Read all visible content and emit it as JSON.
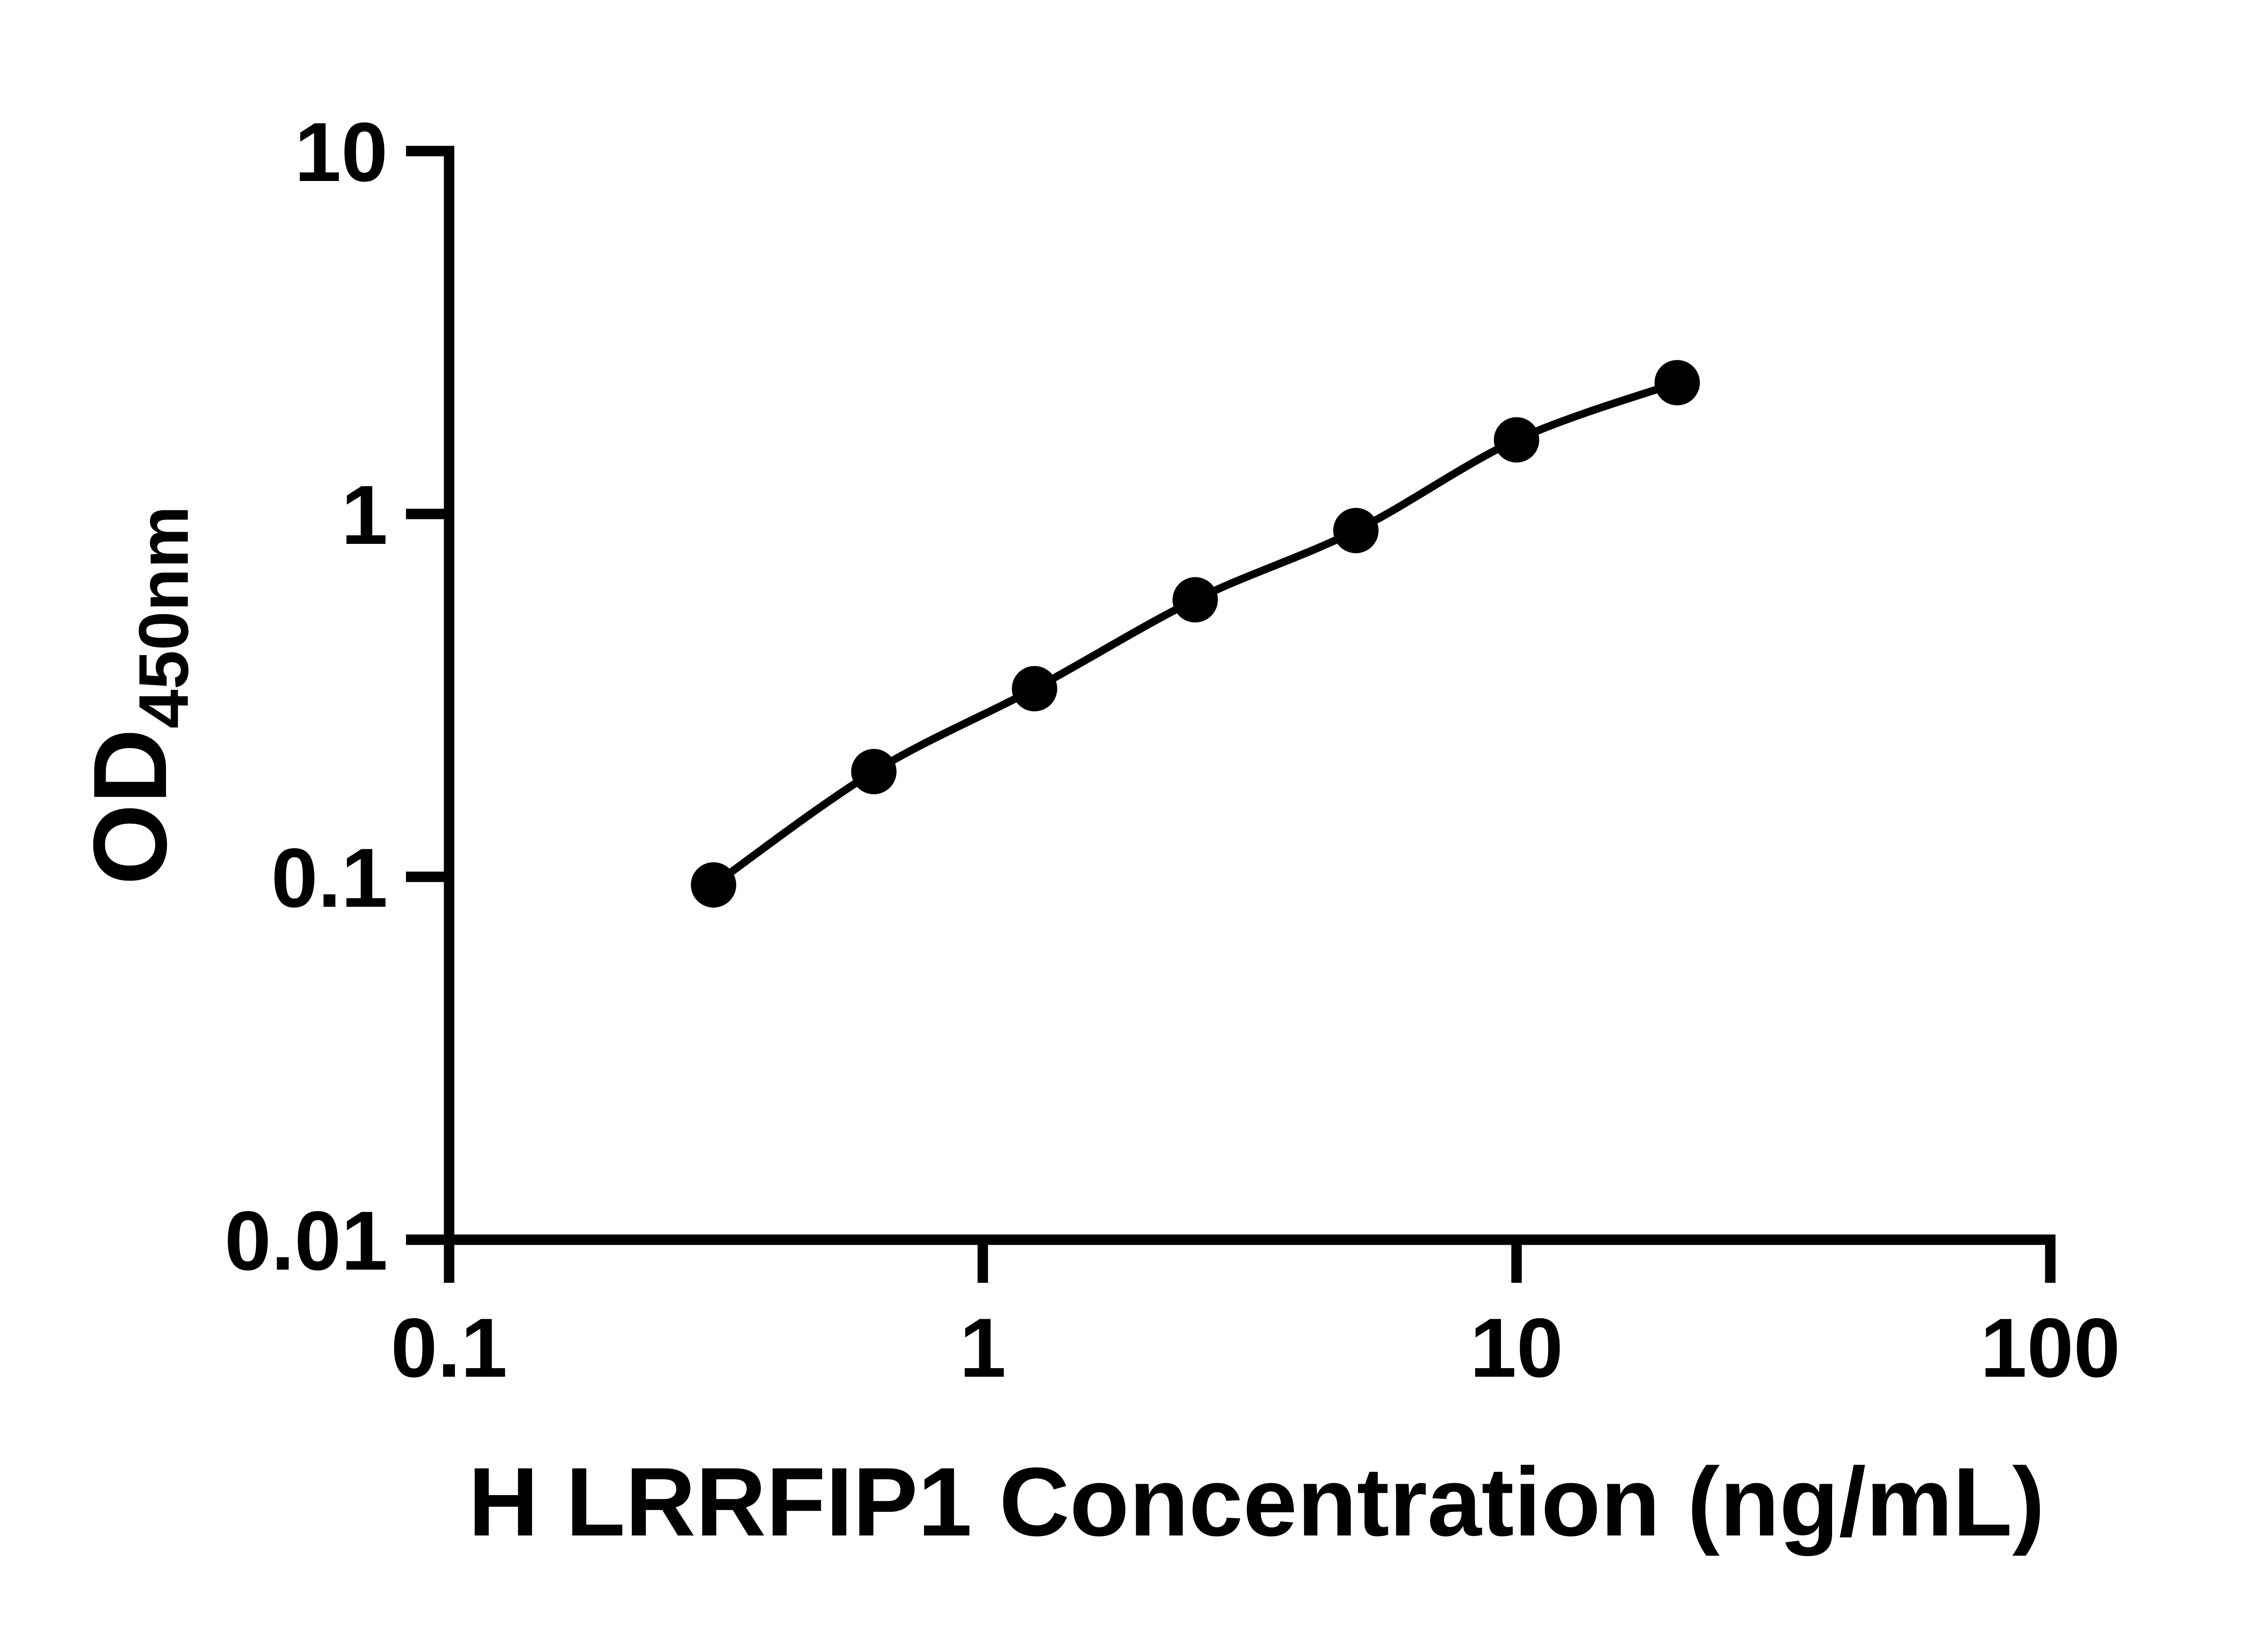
{
  "figure": {
    "background_color": "#ffffff",
    "foreground_color": "#000000"
  },
  "chart_data": {
    "type": "scatter",
    "subtype": "log-log standard curve with smooth connecting line",
    "title": "",
    "xlabel": "H LRRFIP1 Concentration (ng/mL)",
    "ylabel_main": "OD",
    "ylabel_sub": "450nm",
    "xscale": "log",
    "yscale": "log",
    "xlim": [
      0.1,
      100
    ],
    "ylim": [
      0.01,
      10
    ],
    "x_ticks": [
      0.1,
      1,
      10,
      100
    ],
    "x_tick_labels": [
      "0.1",
      "1",
      "10",
      "100"
    ],
    "y_ticks": [
      0.01,
      0.1,
      1,
      10
    ],
    "y_tick_labels": [
      "0.01",
      "0.1",
      "1",
      "10"
    ],
    "grid": false,
    "legend": false,
    "series": [
      {
        "name": "standard-curve",
        "marker": "filled-circle",
        "line_color": "#000000",
        "marker_color": "#000000",
        "x": [
          0.313,
          0.625,
          1.25,
          2.5,
          5,
          10,
          20
        ],
        "y": [
          0.095,
          0.195,
          0.33,
          0.58,
          0.9,
          1.6,
          2.3
        ]
      }
    ]
  }
}
